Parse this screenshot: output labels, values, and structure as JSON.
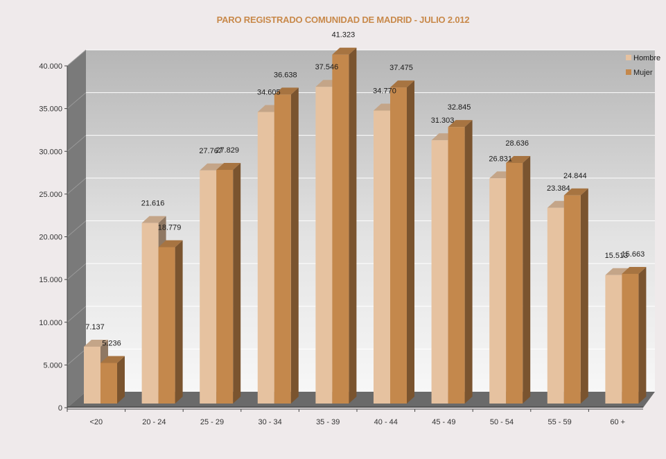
{
  "chart_data": {
    "type": "bar",
    "title": "PARO REGISTRADO COMUNIDAD DE MADRID -  JULIO 2.012",
    "categories": [
      "<20",
      "20 - 24",
      "25 - 29",
      "30 - 34",
      "35 - 39",
      "40 - 44",
      "45 - 49",
      "50 - 54",
      "55 - 59",
      "60 +"
    ],
    "series": [
      {
        "name": "Hombre",
        "values": [
          7137,
          21616,
          27767,
          34605,
          37546,
          34770,
          31303,
          26831,
          23384,
          15513
        ],
        "labels": [
          "7.137",
          "21.616",
          "27.767",
          "34.605",
          "37.546",
          "34.770",
          "31.303",
          "26.831",
          "23.384",
          "15.513"
        ]
      },
      {
        "name": "Mujer",
        "values": [
          5236,
          18779,
          27829,
          36638,
          41323,
          37475,
          32845,
          28636,
          24844,
          15663
        ],
        "labels": [
          "5.236",
          "18.779",
          "27.829",
          "36.638",
          "41.323",
          "37.475",
          "32.845",
          "28.636",
          "24.844",
          "15.663"
        ]
      }
    ],
    "ylim": [
      0,
      40000
    ],
    "yticks": [
      0,
      5000,
      10000,
      15000,
      20000,
      25000,
      30000,
      35000,
      40000
    ],
    "ytick_labels": [
      "0",
      "5.000",
      "10.000",
      "15.000",
      "20.000",
      "25.000",
      "30.000",
      "35.000",
      "40.000"
    ],
    "xlabel": "",
    "ylabel": "",
    "grid": true,
    "legend": "top-right",
    "style": "3d-clustered-column"
  },
  "colors": {
    "title": "#c8894a",
    "hombre": "#e6c2a0",
    "mujer": "#c4884c"
  }
}
